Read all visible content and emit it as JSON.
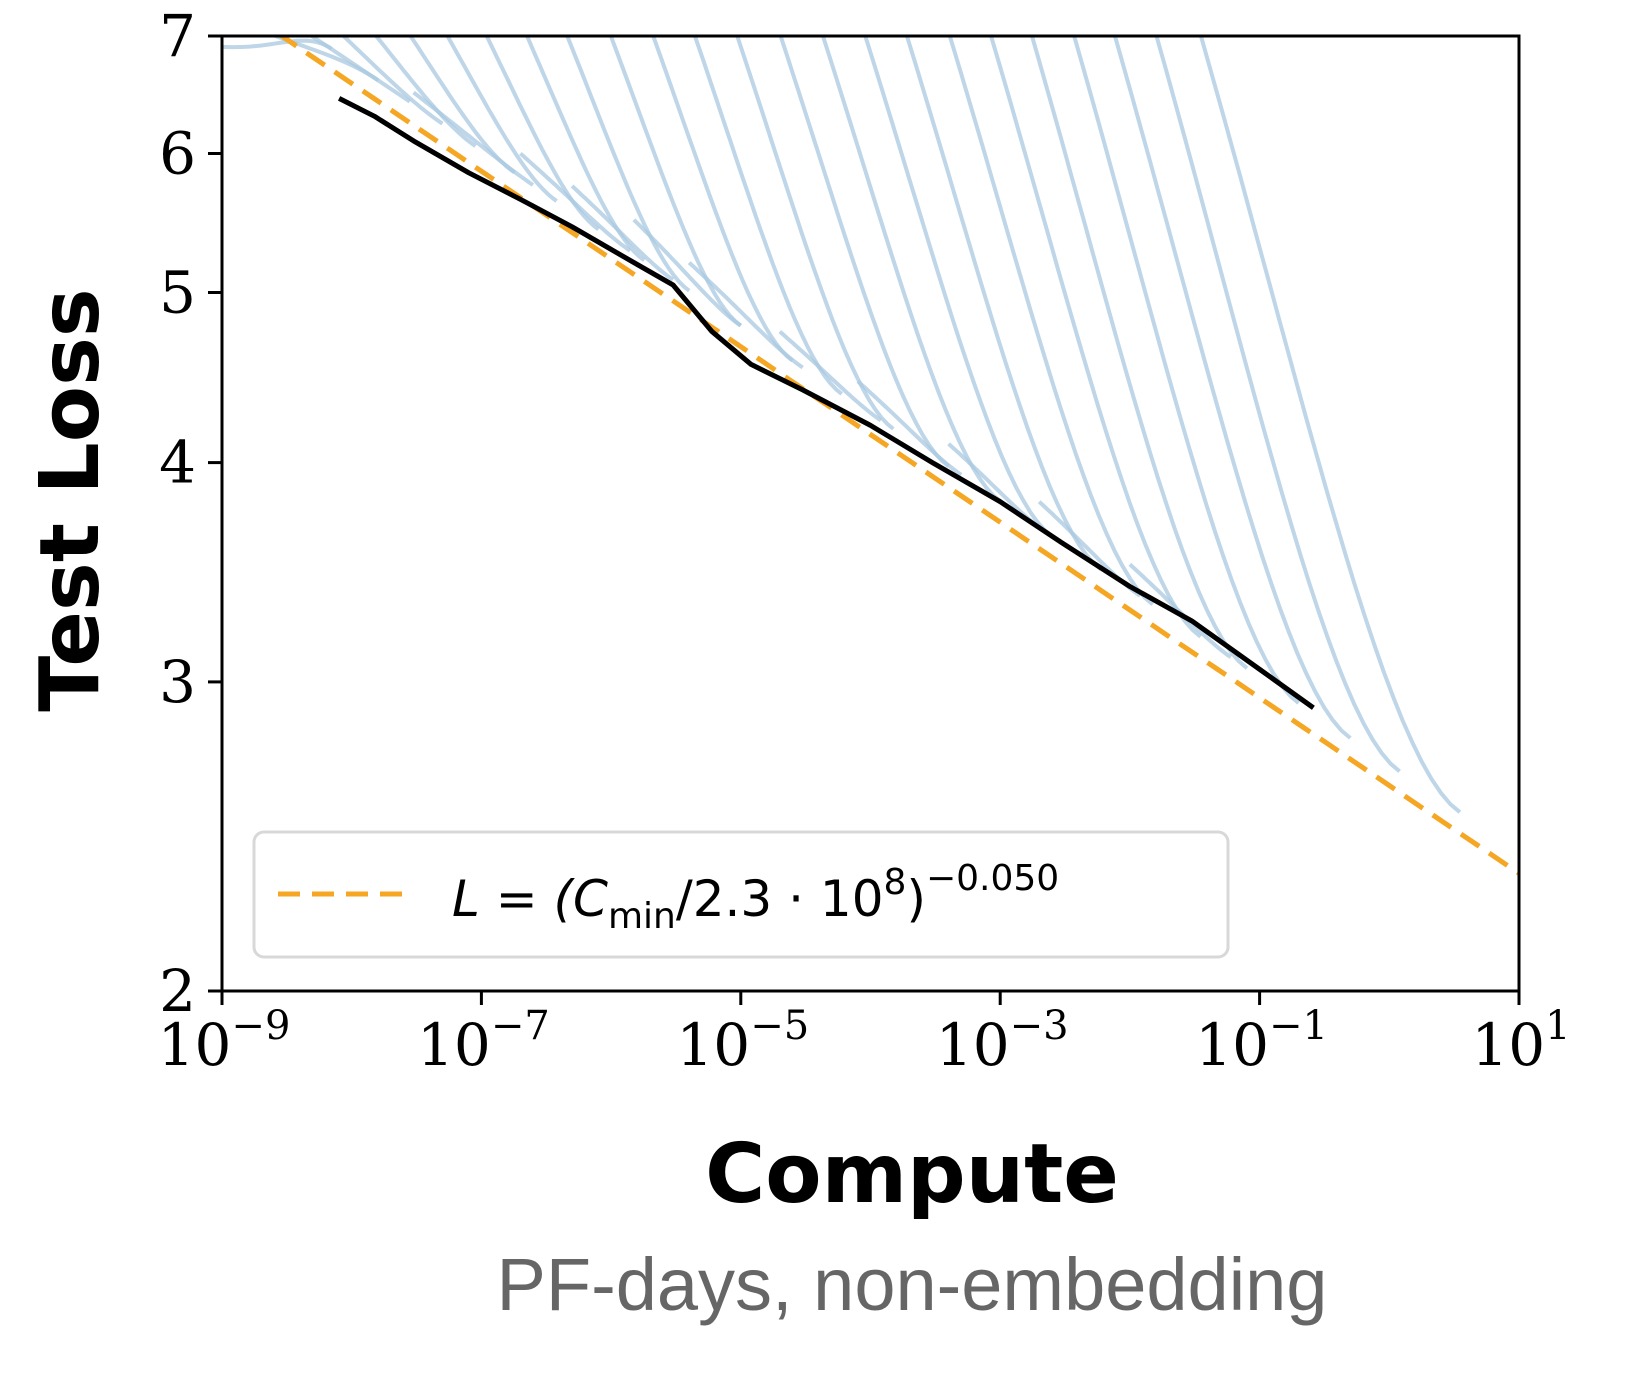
{
  "chart_data": {
    "type": "line",
    "xlabel": "Compute",
    "x_sublabel": "PF-days, non-embedding",
    "ylabel": "Test Loss",
    "x_scale": "log",
    "y_scale": "log",
    "xlim": [
      1e-09,
      10
    ],
    "ylim": [
      2,
      7
    ],
    "x_ticks": [
      {
        "value": 1e-09,
        "base": "10",
        "exp": "−9"
      },
      {
        "value": 1e-07,
        "base": "10",
        "exp": "−7"
      },
      {
        "value": 1e-05,
        "base": "10",
        "exp": "−5"
      },
      {
        "value": 0.001,
        "base": "10",
        "exp": "−3"
      },
      {
        "value": 0.1,
        "base": "10",
        "exp": "−1"
      },
      {
        "value": 10,
        "base": "10",
        "exp": "1"
      }
    ],
    "y_ticks": [
      {
        "value": 2,
        "label": "2"
      },
      {
        "value": 3,
        "label": "3"
      },
      {
        "value": 4,
        "label": "4"
      },
      {
        "value": 5,
        "label": "5"
      },
      {
        "value": 6,
        "label": "6"
      },
      {
        "value": 7,
        "label": "7"
      }
    ],
    "legend": {
      "position": "lower-left",
      "entry": {
        "text_main": "L = (C",
        "text_sub": "min",
        "text_mid": "/2.3 · 10",
        "text_sup1": "8",
        "text_close": ")",
        "text_sup2": "−0.050",
        "style": "dashed",
        "color": "#f5a623"
      }
    },
    "fit": {
      "formula": "L = (C_min / 2.3e8)^-0.050",
      "scale": 230000000.0,
      "exponent": -0.05,
      "color": "#f5a623",
      "style": "dashed"
    },
    "frontier": {
      "color": "#000000",
      "points": [
        [
          8e-09,
          6.45
        ],
        [
          1.5e-08,
          6.3
        ],
        [
          3e-08,
          6.1
        ],
        [
          8e-08,
          5.85
        ],
        [
          2e-07,
          5.65
        ],
        [
          5e-07,
          5.45
        ],
        [
          1.5e-06,
          5.2
        ],
        [
          3e-06,
          5.05
        ],
        [
          6e-06,
          4.75
        ],
        [
          1.2e-05,
          4.55
        ],
        [
          3e-05,
          4.4
        ],
        [
          0.0001,
          4.2
        ],
        [
          0.0003,
          4.0
        ],
        [
          0.001,
          3.8
        ],
        [
          0.003,
          3.6
        ],
        [
          0.01,
          3.4
        ],
        [
          0.03,
          3.25
        ],
        [
          0.1,
          3.05
        ],
        [
          0.26,
          2.9
        ]
      ]
    },
    "runs_color": "#a8c8e0",
    "runs": [
      {
        "start_x": 1e-09,
        "start_y": 6.9,
        "end_x": 7e-09
      },
      {
        "start_x": 1e-09,
        "start_y": 7.2,
        "end_x": 1.6e-08
      },
      {
        "start_x": 1.6e-09,
        "start_y": 7.4,
        "end_x": 2.8e-08
      },
      {
        "start_x": 2.6e-09,
        "start_y": 7.6,
        "end_x": 5e-08
      },
      {
        "start_x": 4.5e-09,
        "start_y": 7.8,
        "end_x": 9e-08
      },
      {
        "start_x": 8e-09,
        "start_y": 8.0,
        "end_x": 1.8e-07
      },
      {
        "start_x": 1.5e-08,
        "start_y": 8.2,
        "end_x": 3.8e-07
      },
      {
        "start_x": 3e-08,
        "start_y": 8.4,
        "end_x": 8e-07
      },
      {
        "start_x": 6e-08,
        "start_y": 8.6,
        "end_x": 1.8e-06
      },
      {
        "start_x": 1.2e-07,
        "start_y": 8.8,
        "end_x": 4e-06
      },
      {
        "start_x": 2.5e-07,
        "start_y": 9.0,
        "end_x": 1e-05
      },
      {
        "start_x": 5e-07,
        "start_y": 9.2,
        "end_x": 2.5e-05
      },
      {
        "start_x": 1e-06,
        "start_y": 9.4,
        "end_x": 6e-05
      },
      {
        "start_x": 2e-06,
        "start_y": 9.6,
        "end_x": 0.00015
      },
      {
        "start_x": 4e-06,
        "start_y": 9.8,
        "end_x": 0.0004
      },
      {
        "start_x": 8e-06,
        "start_y": 10.0,
        "end_x": 0.001
      },
      {
        "start_x": 1.6e-05,
        "start_y": 10.2,
        "end_x": 0.0025
      },
      {
        "start_x": 3.2e-05,
        "start_y": 10.4,
        "end_x": 0.006
      },
      {
        "start_x": 6.5e-05,
        "start_y": 10.6,
        "end_x": 0.015
      },
      {
        "start_x": 0.00013,
        "start_y": 10.8,
        "end_x": 0.035
      },
      {
        "start_x": 0.00026,
        "start_y": 11.0,
        "end_x": 0.08
      },
      {
        "start_x": 0.00052,
        "start_y": 11.2,
        "end_x": 0.2
      },
      {
        "start_x": 0.001,
        "start_y": 11.4,
        "end_x": 0.5
      },
      {
        "start_x": 0.002,
        "start_y": 11.6,
        "end_x": 1.2
      },
      {
        "start_x": 0.004,
        "start_y": 11.8,
        "end_x": 3.5
      },
      {
        "start_x": 3e-08,
        "start_y": 6.5,
        "end_x": 2.5e-07
      },
      {
        "start_x": 2e-07,
        "start_y": 6.0,
        "end_x": 1.4e-06
      },
      {
        "start_x": 5e-07,
        "start_y": 5.75,
        "end_x": 3e-06
      },
      {
        "start_x": 1.5e-06,
        "start_y": 5.5,
        "end_x": 1e-05
      },
      {
        "start_x": 4e-06,
        "start_y": 5.2,
        "end_x": 3e-05
      },
      {
        "start_x": 2e-05,
        "start_y": 4.75,
        "end_x": 0.00012
      },
      {
        "start_x": 8e-05,
        "start_y": 4.45,
        "end_x": 0.0005
      },
      {
        "start_x": 0.0004,
        "start_y": 4.1,
        "end_x": 0.0022
      },
      {
        "start_x": 0.002,
        "start_y": 3.8,
        "end_x": 0.012
      },
      {
        "start_x": 0.01,
        "start_y": 3.5,
        "end_x": 0.06
      }
    ]
  }
}
